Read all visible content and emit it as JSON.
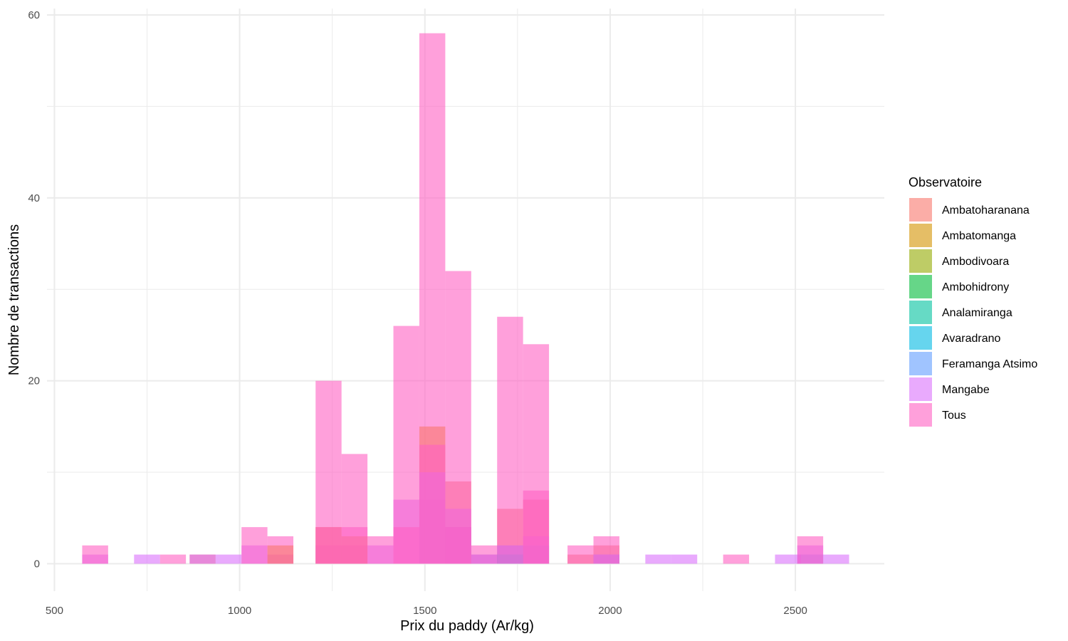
{
  "chart_data": {
    "type": "bar",
    "subtype": "overlapping-histogram",
    "xlabel": "Prix du paddy (Ar/kg)",
    "ylabel": "Nombre de transactions",
    "xlim": [
      480,
      2740
    ],
    "ylim": [
      -3,
      60.7
    ],
    "x_ticks": [
      500,
      1000,
      1500,
      2000,
      2500
    ],
    "x_minor_ticks": [
      750,
      1250,
      1750,
      2250
    ],
    "y_ticks": [
      0,
      20,
      40,
      60
    ],
    "y_minor_ticks": [
      10,
      30,
      50
    ],
    "grid": true,
    "bar_opacity": 0.6,
    "legend": {
      "title": "Observatoire",
      "placement": "right"
    },
    "series": [
      {
        "name": "Ambatoharanana",
        "color": "#F8766D",
        "bins": [
          [
            865,
            935,
            1
          ],
          [
            1555,
            1625,
            9
          ],
          [
            1695,
            1765,
            6
          ],
          [
            1765,
            1835,
            7
          ],
          [
            1885,
            1955,
            1
          ],
          [
            1955,
            2025,
            2
          ]
        ]
      },
      {
        "name": "Ambatomanga",
        "color": "#D39200",
        "bins": [
          [
            1695,
            1765,
            1
          ]
        ]
      },
      {
        "name": "Ambodivoara",
        "color": "#93AA00",
        "bins": [
          [
            1695,
            1765,
            1
          ]
        ]
      },
      {
        "name": "Ambohidrony",
        "color": "#00BA38",
        "bins": [
          [
            1695,
            1765,
            1
          ]
        ]
      },
      {
        "name": "Analamiranga",
        "color": "#00C19F",
        "bins": [
          [
            1695,
            1765,
            1
          ]
        ]
      },
      {
        "name": "Avaradrano",
        "color": "#00B9E3",
        "bins": [
          [
            1695,
            1765,
            1
          ]
        ]
      },
      {
        "name": "Feramanga Atsimo",
        "color": "#619CFF",
        "bins": [
          [
            1555,
            1625,
            4
          ],
          [
            1625,
            1695,
            1
          ],
          [
            1695,
            1765,
            2
          ],
          [
            1765,
            1835,
            2
          ],
          [
            1955,
            2025,
            1
          ],
          [
            2505,
            2575,
            1
          ]
        ]
      },
      {
        "name": "Mangabe",
        "color": "#DB72FB",
        "bins": [
          [
            575,
            645,
            1
          ],
          [
            715,
            785,
            1
          ],
          [
            865,
            935,
            1
          ],
          [
            935,
            1005,
            1
          ],
          [
            1005,
            1075,
            2
          ],
          [
            1075,
            1145,
            1
          ],
          [
            1205,
            1275,
            2
          ],
          [
            1275,
            1345,
            2
          ],
          [
            1345,
            1415,
            2
          ],
          [
            1415,
            1485,
            7
          ],
          [
            1485,
            1555,
            7
          ],
          [
            1555,
            1625,
            6
          ],
          [
            1625,
            1695,
            1
          ],
          [
            1695,
            1765,
            2
          ],
          [
            1765,
            1835,
            3
          ],
          [
            1955,
            2025,
            1
          ],
          [
            2095,
            2165,
            1
          ],
          [
            2165,
            2235,
            1
          ],
          [
            2445,
            2515,
            1
          ],
          [
            2505,
            2575,
            2
          ],
          [
            2575,
            2645,
            1
          ]
        ]
      },
      {
        "name": "Tous",
        "color": "#FF61C3",
        "bins": [
          [
            575,
            645,
            2
          ],
          [
            785,
            855,
            1
          ],
          [
            1005,
            1075,
            4
          ],
          [
            1075,
            1145,
            3
          ],
          [
            1205,
            1275,
            20
          ],
          [
            1275,
            1345,
            12
          ],
          [
            1345,
            1415,
            3
          ],
          [
            1415,
            1485,
            26
          ],
          [
            1485,
            1555,
            58
          ],
          [
            1555,
            1625,
            32
          ],
          [
            1625,
            1695,
            2
          ],
          [
            1695,
            1765,
            27
          ],
          [
            1765,
            1835,
            24
          ],
          [
            1885,
            1955,
            2
          ],
          [
            1955,
            2025,
            3
          ],
          [
            2305,
            2375,
            1
          ],
          [
            2505,
            2575,
            3
          ]
        ]
      }
    ],
    "extra_bins": [
      {
        "series": "Ambatoharanana",
        "x0": 1485,
        "x1": 1555,
        "count": 15
      },
      {
        "series": "Ambatoharanana",
        "x0": 1205,
        "x1": 1275,
        "count": 4
      },
      {
        "series": "Ambatoharanana",
        "x0": 1275,
        "x1": 1345,
        "count": 3
      },
      {
        "series": "Ambatoharanana",
        "x0": 1075,
        "x1": 1145,
        "count": 2
      },
      {
        "series": "Mangabe",
        "x0": 1485,
        "x1": 1555,
        "count": 10
      },
      {
        "series": "Tous",
        "x0": 1485,
        "x1": 1555,
        "count": 13
      },
      {
        "series": "Tous",
        "x0": 1275,
        "x1": 1345,
        "count": 4
      },
      {
        "series": "Tous",
        "x0": 1205,
        "x1": 1275,
        "count": 4
      },
      {
        "series": "Tous",
        "x0": 1415,
        "x1": 1485,
        "count": 4
      },
      {
        "series": "Tous",
        "x0": 1555,
        "x1": 1625,
        "count": 4
      },
      {
        "series": "Tous",
        "x0": 1765,
        "x1": 1835,
        "count": 8
      }
    ]
  }
}
